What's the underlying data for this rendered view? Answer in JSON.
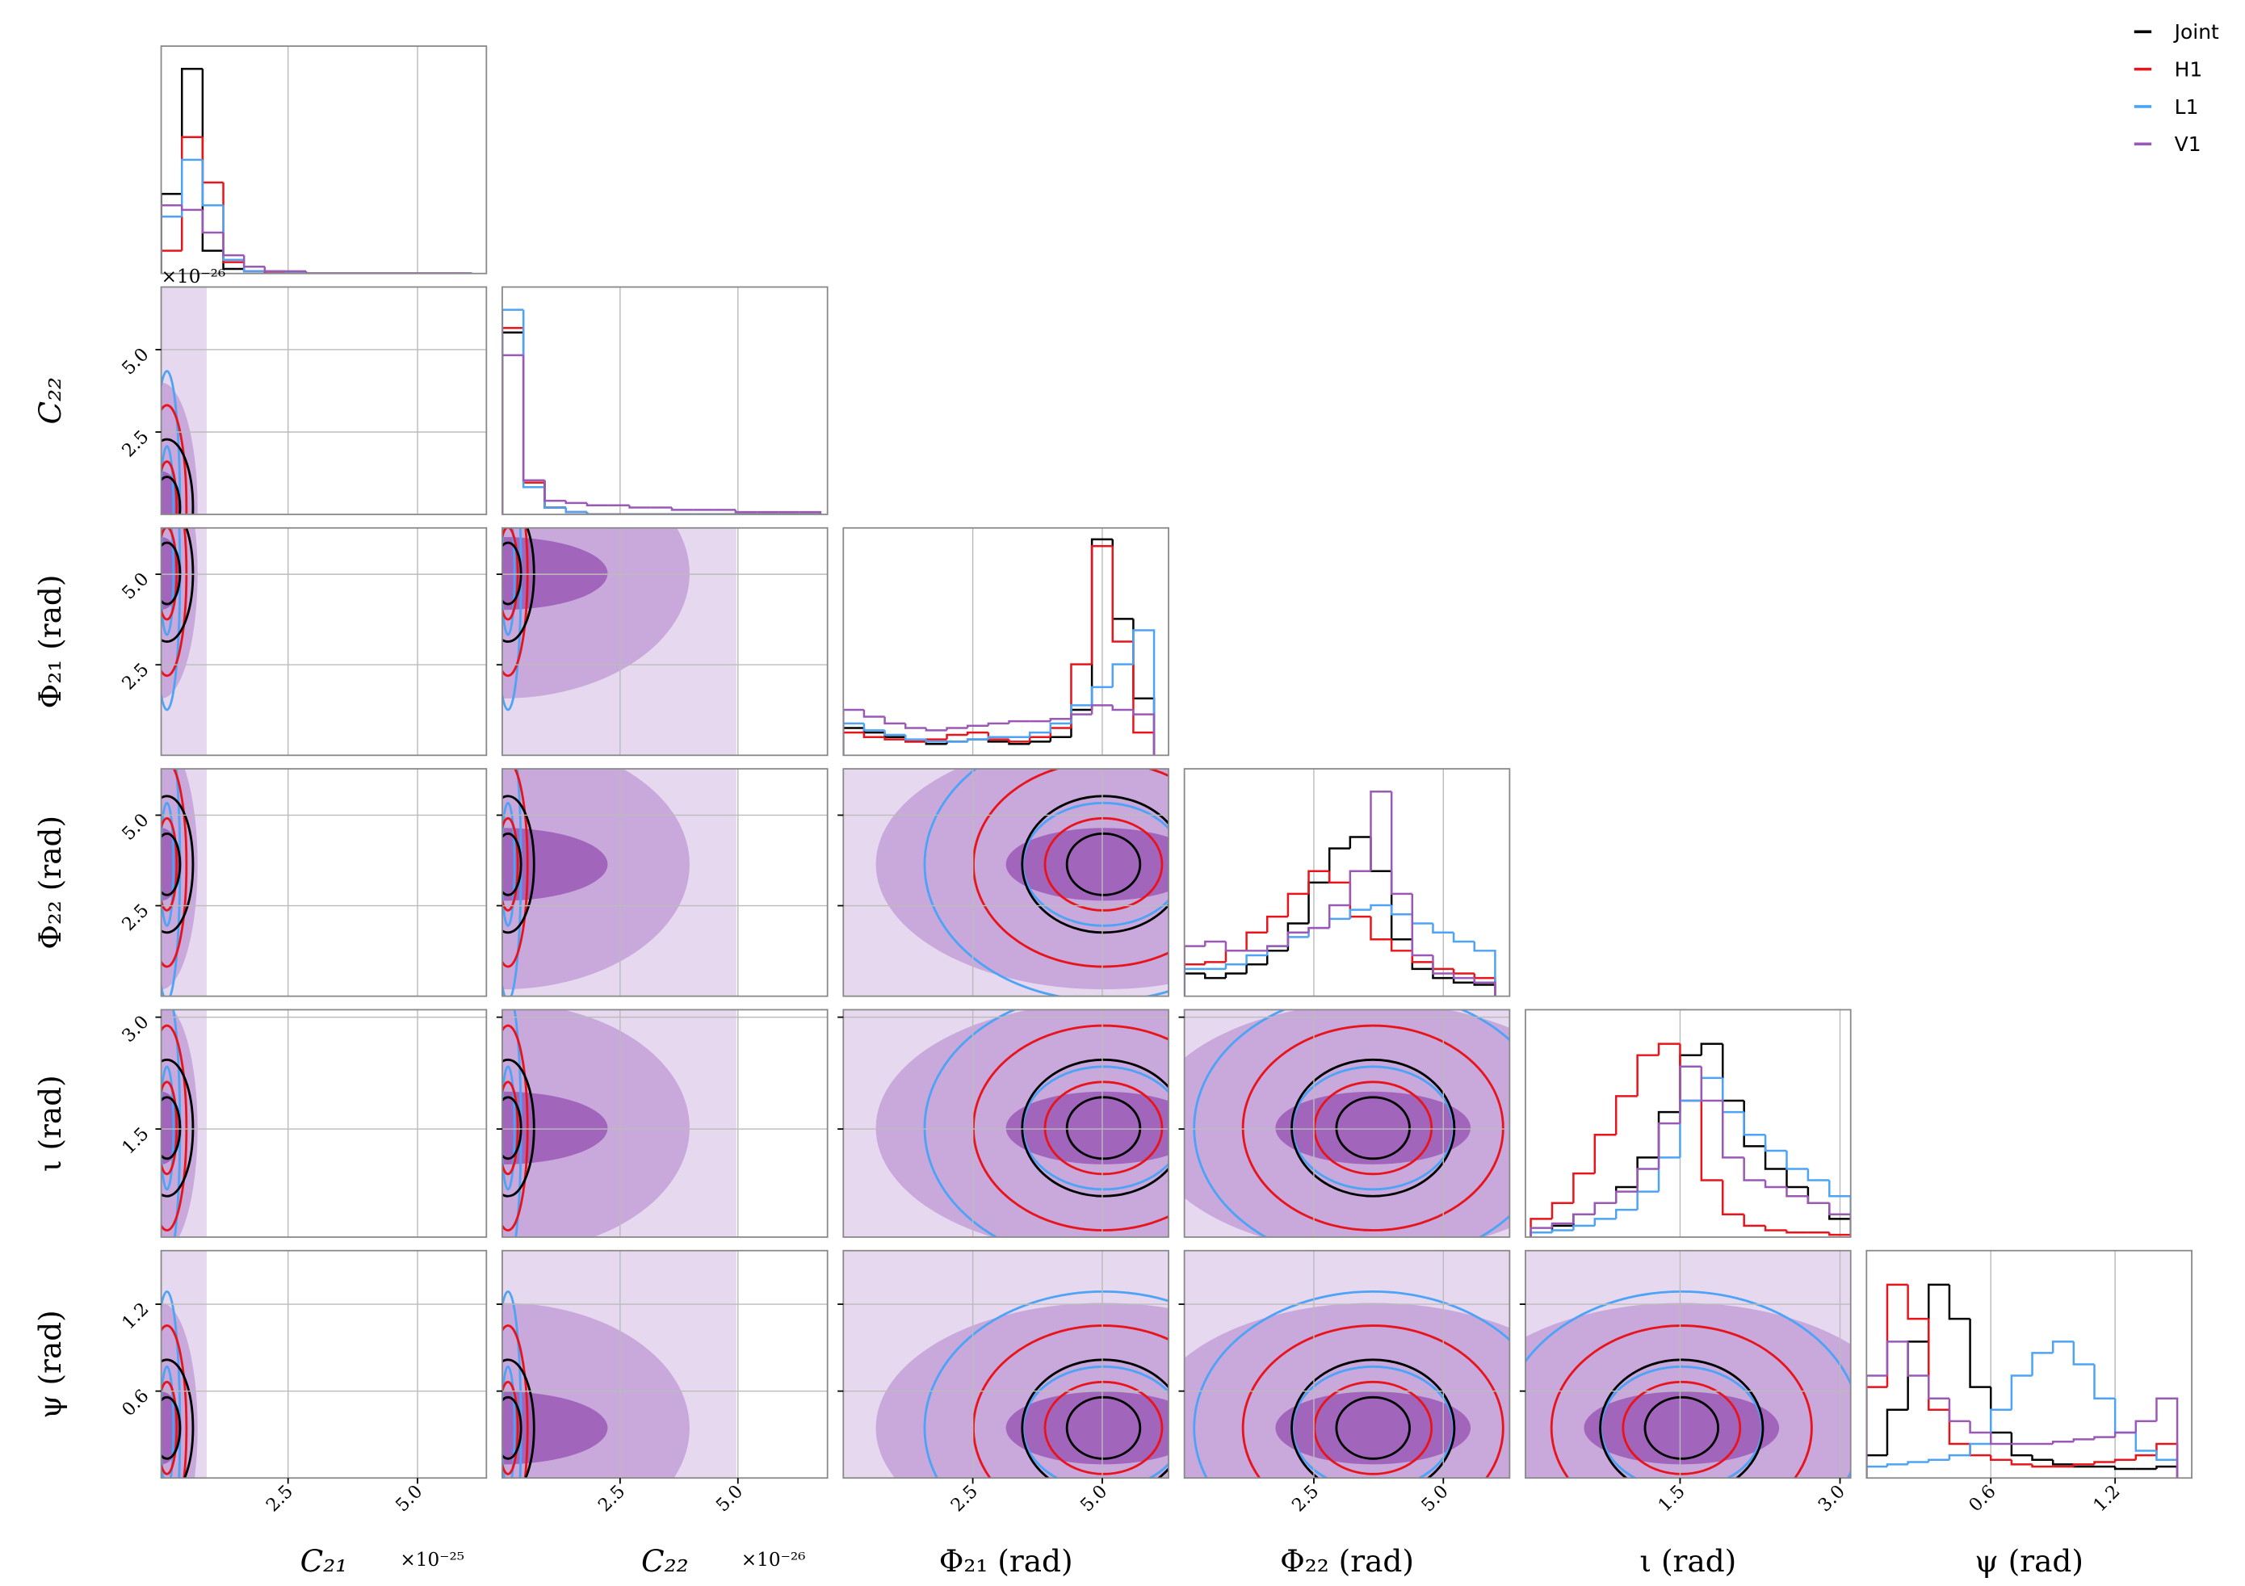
{
  "chart_data": {
    "type": "corner",
    "hist_ylim": [
      0,
      100
    ],
    "grid": true,
    "parameters": [
      {
        "label": "C₂₁",
        "offset": "×10⁻²⁵",
        "lim": [
          0.05,
          6.33
        ],
        "ticks": [
          2.5,
          {
            "value": 5,
            "label": "5.0"
          }
        ],
        "bins": [
          0.05,
          0.45,
          0.85,
          1.25,
          1.65,
          2.05,
          2.45,
          2.85,
          3.25,
          3.65,
          4.05,
          4.45,
          4.85,
          5.25,
          5.65,
          6.05
        ]
      },
      {
        "label": "C₂₂",
        "offset": "×10⁻²⁶",
        "lim": [
          0,
          6.9
        ],
        "ticks": [
          2.5,
          {
            "value": 5,
            "label": "5.0"
          }
        ],
        "bins": [
          0,
          0.45,
          0.9,
          1.35,
          1.8,
          2.25,
          2.7,
          3.15,
          3.6,
          4.05,
          4.5,
          4.95,
          5.4,
          5.85,
          6.3,
          6.75
        ]
      },
      {
        "label": "Φ₂₁ (rad)",
        "lim": [
          0,
          6.28
        ],
        "ticks": [
          2.5,
          {
            "value": 5,
            "label": "5.0"
          }
        ],
        "bins": [
          0,
          0.4,
          0.8,
          1.2,
          1.6,
          2,
          2.4,
          2.8,
          3.2,
          3.6,
          4,
          4.4,
          4.8,
          5.2,
          5.6,
          6
        ]
      },
      {
        "label": "Φ₂₂ (rad)",
        "lim": [
          0,
          6.28
        ],
        "ticks": [
          2.5,
          {
            "value": 5,
            "label": "5.0"
          }
        ],
        "bins": [
          0,
          0.4,
          0.8,
          1.2,
          1.6,
          2,
          2.4,
          2.8,
          3.2,
          3.6,
          4,
          4.4,
          4.8,
          5.2,
          5.6,
          6
        ]
      },
      {
        "label": "ι (rad)",
        "lim": [
          0.05,
          3.1
        ],
        "ticks": [
          1.5,
          {
            "value": 3,
            "label": "3.0"
          }
        ],
        "bins": [
          0.1,
          0.3,
          0.5,
          0.7,
          0.9,
          1.1,
          1.3,
          1.5,
          1.7,
          1.9,
          2.1,
          2.3,
          2.5,
          2.7,
          2.9,
          3.1
        ]
      },
      {
        "label": "ψ (rad)",
        "lim": [
          0,
          1.57
        ],
        "ticks": [
          0.6,
          1.2
        ],
        "bins": [
          0,
          0.1,
          0.2,
          0.3,
          0.4,
          0.5,
          0.6,
          0.7,
          0.8,
          0.9,
          1,
          1.1,
          1.2,
          1.3,
          1.4,
          1.5
        ]
      }
    ],
    "series": [
      {
        "name": "Joint",
        "color": "#000000",
        "histograms": [
          [
            35,
            90,
            10,
            2,
            1,
            0,
            0,
            0,
            0,
            0,
            0,
            0,
            0,
            0,
            0
          ],
          [
            80,
            15,
            3,
            1,
            0,
            0,
            0,
            0,
            0,
            0,
            0,
            0,
            0,
            0,
            0
          ],
          [
            12,
            10,
            8,
            6,
            5,
            6,
            7,
            6,
            5,
            6,
            8,
            20,
            95,
            60,
            25
          ],
          [
            10,
            8,
            10,
            14,
            20,
            32,
            50,
            65,
            70,
            55,
            25,
            12,
            8,
            6,
            5
          ],
          [
            2,
            5,
            10,
            15,
            22,
            35,
            55,
            80,
            85,
            60,
            40,
            30,
            22,
            15,
            8
          ],
          [
            10,
            30,
            60,
            85,
            70,
            40,
            20,
            10,
            8,
            6,
            5,
            5,
            4,
            4,
            5
          ]
        ]
      },
      {
        "name": "H1",
        "color": "#e8141b",
        "histograms": [
          [
            10,
            60,
            40,
            5,
            1,
            0,
            0,
            0,
            0,
            0,
            0,
            0,
            0,
            0,
            0
          ],
          [
            82,
            14,
            3,
            1,
            0,
            0,
            0,
            0,
            0,
            0,
            0,
            0,
            0,
            0,
            0
          ],
          [
            10,
            8,
            7,
            6,
            7,
            9,
            10,
            7,
            6,
            8,
            12,
            40,
            92,
            50,
            10
          ],
          [
            14,
            15,
            20,
            28,
            35,
            45,
            55,
            50,
            35,
            25,
            20,
            15,
            12,
            10,
            8
          ],
          [
            8,
            15,
            28,
            45,
            62,
            80,
            85,
            60,
            25,
            10,
            5,
            3,
            2,
            2,
            1
          ],
          [
            40,
            85,
            70,
            30,
            15,
            10,
            8,
            6,
            5,
            5,
            6,
            7,
            8,
            10,
            15
          ]
        ]
      },
      {
        "name": "L1",
        "color": "#4da3f5",
        "histograms": [
          [
            25,
            50,
            30,
            6,
            1,
            1,
            0,
            0,
            0,
            0,
            0,
            0,
            0,
            0,
            0
          ],
          [
            90,
            12,
            3,
            1,
            0,
            0,
            0,
            0,
            0,
            0,
            0,
            0,
            0,
            0,
            0
          ],
          [
            14,
            11,
            9,
            7,
            6,
            6,
            7,
            8,
            8,
            10,
            14,
            22,
            30,
            40,
            55
          ],
          [
            12,
            12,
            14,
            18,
            22,
            26,
            30,
            34,
            38,
            40,
            36,
            32,
            28,
            24,
            20
          ],
          [
            2,
            3,
            5,
            8,
            12,
            20,
            35,
            60,
            70,
            55,
            45,
            38,
            30,
            25,
            18
          ],
          [
            5,
            6,
            7,
            8,
            10,
            15,
            30,
            45,
            55,
            60,
            50,
            35,
            20,
            12,
            8
          ]
        ]
      },
      {
        "name": "V1",
        "color": "#9b59b6",
        "histograms": [
          [
            30,
            28,
            18,
            8,
            3,
            1,
            1,
            0,
            0,
            0,
            0,
            0,
            0,
            0,
            0
          ],
          [
            70,
            15,
            6,
            5,
            4,
            4,
            3,
            3,
            2,
            2,
            2,
            1,
            1,
            1,
            1
          ],
          [
            20,
            17,
            14,
            12,
            11,
            12,
            13,
            14,
            15,
            15,
            16,
            18,
            22,
            20,
            18
          ],
          [
            22,
            24,
            20,
            20,
            22,
            28,
            30,
            40,
            55,
            90,
            45,
            18,
            10,
            8,
            6
          ],
          [
            4,
            6,
            10,
            15,
            20,
            30,
            50,
            75,
            60,
            35,
            25,
            22,
            18,
            15,
            10
          ],
          [
            45,
            60,
            45,
            35,
            25,
            20,
            15,
            15,
            15,
            16,
            17,
            18,
            20,
            25,
            35
          ]
        ]
      }
    ]
  }
}
